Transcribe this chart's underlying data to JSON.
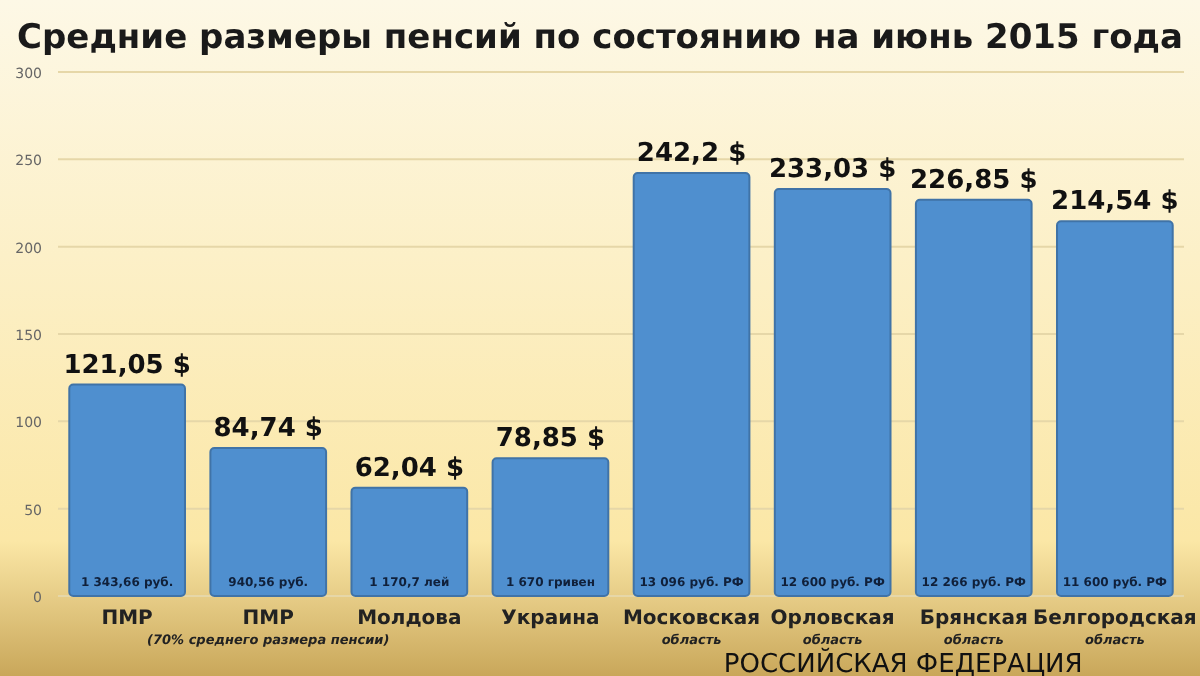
{
  "chart_data": {
    "type": "bar",
    "title": "Средние размеры пенсий по состоянию на июнь 2015 года",
    "categories": [
      "ПМР",
      "ПМР\n(70% среднего размера пенсии)",
      "Молдова",
      "Украина",
      "Московская\nобласть",
      "Орловская\nобласть",
      "Брянская\nобласть",
      "Белгородская\nобласть"
    ],
    "values": [
      121.05,
      84.74,
      62.04,
      78.85,
      242.2,
      233.03,
      226.85,
      214.54
    ],
    "value_labels": [
      "121,05 $",
      "84,74 $",
      "62,04 $",
      "78,85 $",
      "242,2 $",
      "233,03 $",
      "226,85 $",
      "214,54 $"
    ],
    "color": "#4f8fcf",
    "ylim": [
      0,
      300
    ],
    "yticks": [
      0,
      50,
      100,
      150,
      200,
      250,
      300
    ],
    "grid": "y",
    "annotations": [
      {
        "text": "1 343,66 руб.",
        "x": "ПМР",
        "y": 0
      },
      {
        "text": "940,56 руб.",
        "x": "ПМР\n(70% среднего размера пенсии)",
        "y": 0
      },
      {
        "text": "1 170,7 лей",
        "x": "Молдова",
        "y": 0
      },
      {
        "text": "1 670 гривен",
        "x": "Украина",
        "y": 0
      },
      {
        "text": "13 096 руб. РФ",
        "x": "Московская\nобласть",
        "y": 0
      },
      {
        "text": "12 600 руб. РФ",
        "x": "Орловская\nобласть",
        "y": 0
      },
      {
        "text": "12 266 руб. РФ",
        "x": "Брянская\nобласть",
        "y": 0
      },
      {
        "text": "11 600 руб. РФ",
        "x": "Белгородская\nобласть",
        "y": 0
      },
      "РОССИЙСКАЯ ФЕДЕРАЦИЯ"
    ]
  }
}
